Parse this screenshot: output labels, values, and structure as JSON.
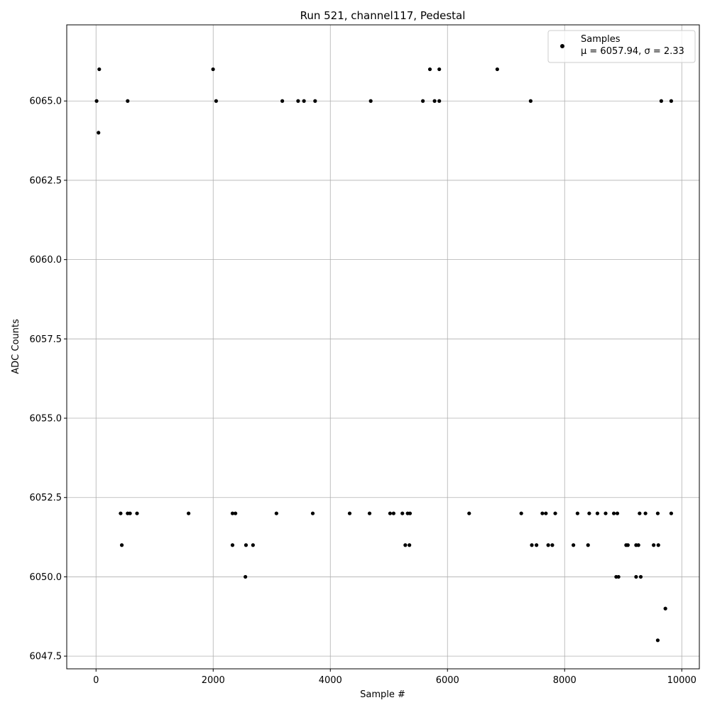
{
  "chart_data": {
    "type": "scatter",
    "title": "Run 521, channel117, Pedestal",
    "xlabel": "Sample #",
    "ylabel": "ADC Counts",
    "xlim": [
      -500,
      10300
    ],
    "ylim": [
      6047.1,
      6067.4
    ],
    "xticks": [
      0,
      2000,
      4000,
      6000,
      8000,
      10000
    ],
    "xtick_labels": [
      "0",
      "2000",
      "4000",
      "6000",
      "8000",
      "10000"
    ],
    "yticks": [
      6047.5,
      6050.0,
      6052.5,
      6055.0,
      6057.5,
      6060.0,
      6062.5,
      6065.0
    ],
    "ytick_labels": [
      "6047.5",
      "6050.0",
      "6052.5",
      "6055.0",
      "6057.5",
      "6060.0",
      "6062.5",
      "6065.0"
    ],
    "grid": true,
    "legend": {
      "placement": "top-right",
      "label": "Samples",
      "stats": "μ = 6057.94, σ = 2.33"
    },
    "marker_color": "#000000",
    "series": [
      {
        "name": "Samples",
        "points": [
          [
            10,
            6065
          ],
          [
            55,
            6066
          ],
          [
            42,
            6064
          ],
          [
            540,
            6065
          ],
          [
            1998,
            6066
          ],
          [
            2050,
            6065
          ],
          [
            3180,
            6065
          ],
          [
            3450,
            6065
          ],
          [
            3550,
            6065
          ],
          [
            3740,
            6065
          ],
          [
            4690,
            6065
          ],
          [
            5580,
            6065
          ],
          [
            5700,
            6066
          ],
          [
            5780,
            6065
          ],
          [
            5860,
            6066
          ],
          [
            5860,
            6065
          ],
          [
            6850,
            6066
          ],
          [
            7420,
            6065
          ],
          [
            9650,
            6065
          ],
          [
            9820,
            6065
          ],
          [
            1580,
            6052
          ],
          [
            2330,
            6052
          ],
          [
            2380,
            6052
          ],
          [
            3080,
            6052
          ],
          [
            3700,
            6052
          ],
          [
            4330,
            6052
          ],
          [
            4670,
            6052
          ],
          [
            5020,
            6052
          ],
          [
            5080,
            6052
          ],
          [
            5230,
            6052
          ],
          [
            5320,
            6052
          ],
          [
            5360,
            6052
          ],
          [
            6370,
            6052
          ],
          [
            7260,
            6052
          ],
          [
            7620,
            6052
          ],
          [
            7680,
            6052
          ],
          [
            7840,
            6052
          ],
          [
            8220,
            6052
          ],
          [
            8420,
            6052
          ],
          [
            8560,
            6052
          ],
          [
            8700,
            6052
          ],
          [
            8840,
            6052
          ],
          [
            8900,
            6052
          ],
          [
            9280,
            6052
          ],
          [
            9380,
            6052
          ],
          [
            9590,
            6052
          ],
          [
            9820,
            6052
          ],
          [
            420,
            6052
          ],
          [
            540,
            6052
          ],
          [
            580,
            6052
          ],
          [
            700,
            6052
          ],
          [
            440,
            6051
          ],
          [
            2330,
            6051
          ],
          [
            2560,
            6051
          ],
          [
            2680,
            6051
          ],
          [
            5280,
            6051
          ],
          [
            5350,
            6051
          ],
          [
            7440,
            6051
          ],
          [
            7520,
            6051
          ],
          [
            7720,
            6051
          ],
          [
            7790,
            6051
          ],
          [
            8150,
            6051
          ],
          [
            8400,
            6051
          ],
          [
            9050,
            6051
          ],
          [
            9080,
            6051
          ],
          [
            9220,
            6051
          ],
          [
            9260,
            6051
          ],
          [
            9520,
            6051
          ],
          [
            9600,
            6051
          ],
          [
            2550,
            6050
          ],
          [
            8880,
            6050
          ],
          [
            8920,
            6050
          ],
          [
            9220,
            6050
          ],
          [
            9300,
            6050
          ],
          [
            9720,
            6049
          ],
          [
            9590,
            6048
          ]
        ]
      }
    ]
  }
}
